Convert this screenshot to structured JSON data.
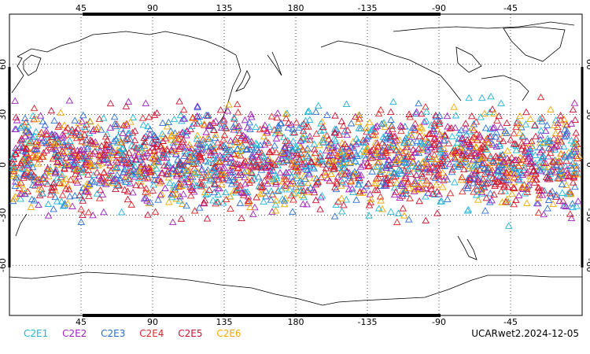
{
  "map": {
    "projection": "cylindrical equidistant, centered 180",
    "top_lon_labels": [
      "45",
      "90",
      "135",
      "180",
      "-135",
      "-90",
      "-45"
    ],
    "bottom_lon_labels": [
      "45",
      "90",
      "135",
      "180",
      "-135",
      "-90",
      "-45"
    ],
    "left_lat_labels": [
      "60",
      "30",
      "0",
      "-30",
      "-60"
    ],
    "right_lat_labels": [
      "60",
      "30",
      "0",
      "-30",
      "-60"
    ],
    "marker_shape": "open-triangle",
    "observation_band_lat": [
      -40,
      45
    ]
  },
  "legend": {
    "items": [
      {
        "label": "C2E1",
        "color": "#1fb6d8"
      },
      {
        "label": "C2E2",
        "color": "#a020c0"
      },
      {
        "label": "C2E3",
        "color": "#2a6fd6"
      },
      {
        "label": "C2E4",
        "color": "#e0282a"
      },
      {
        "label": "C2E5",
        "color": "#d01030"
      },
      {
        "label": "C2E6",
        "color": "#f2a800"
      }
    ]
  },
  "footer": {
    "label": "UCARwet2.2024-12-05"
  }
}
